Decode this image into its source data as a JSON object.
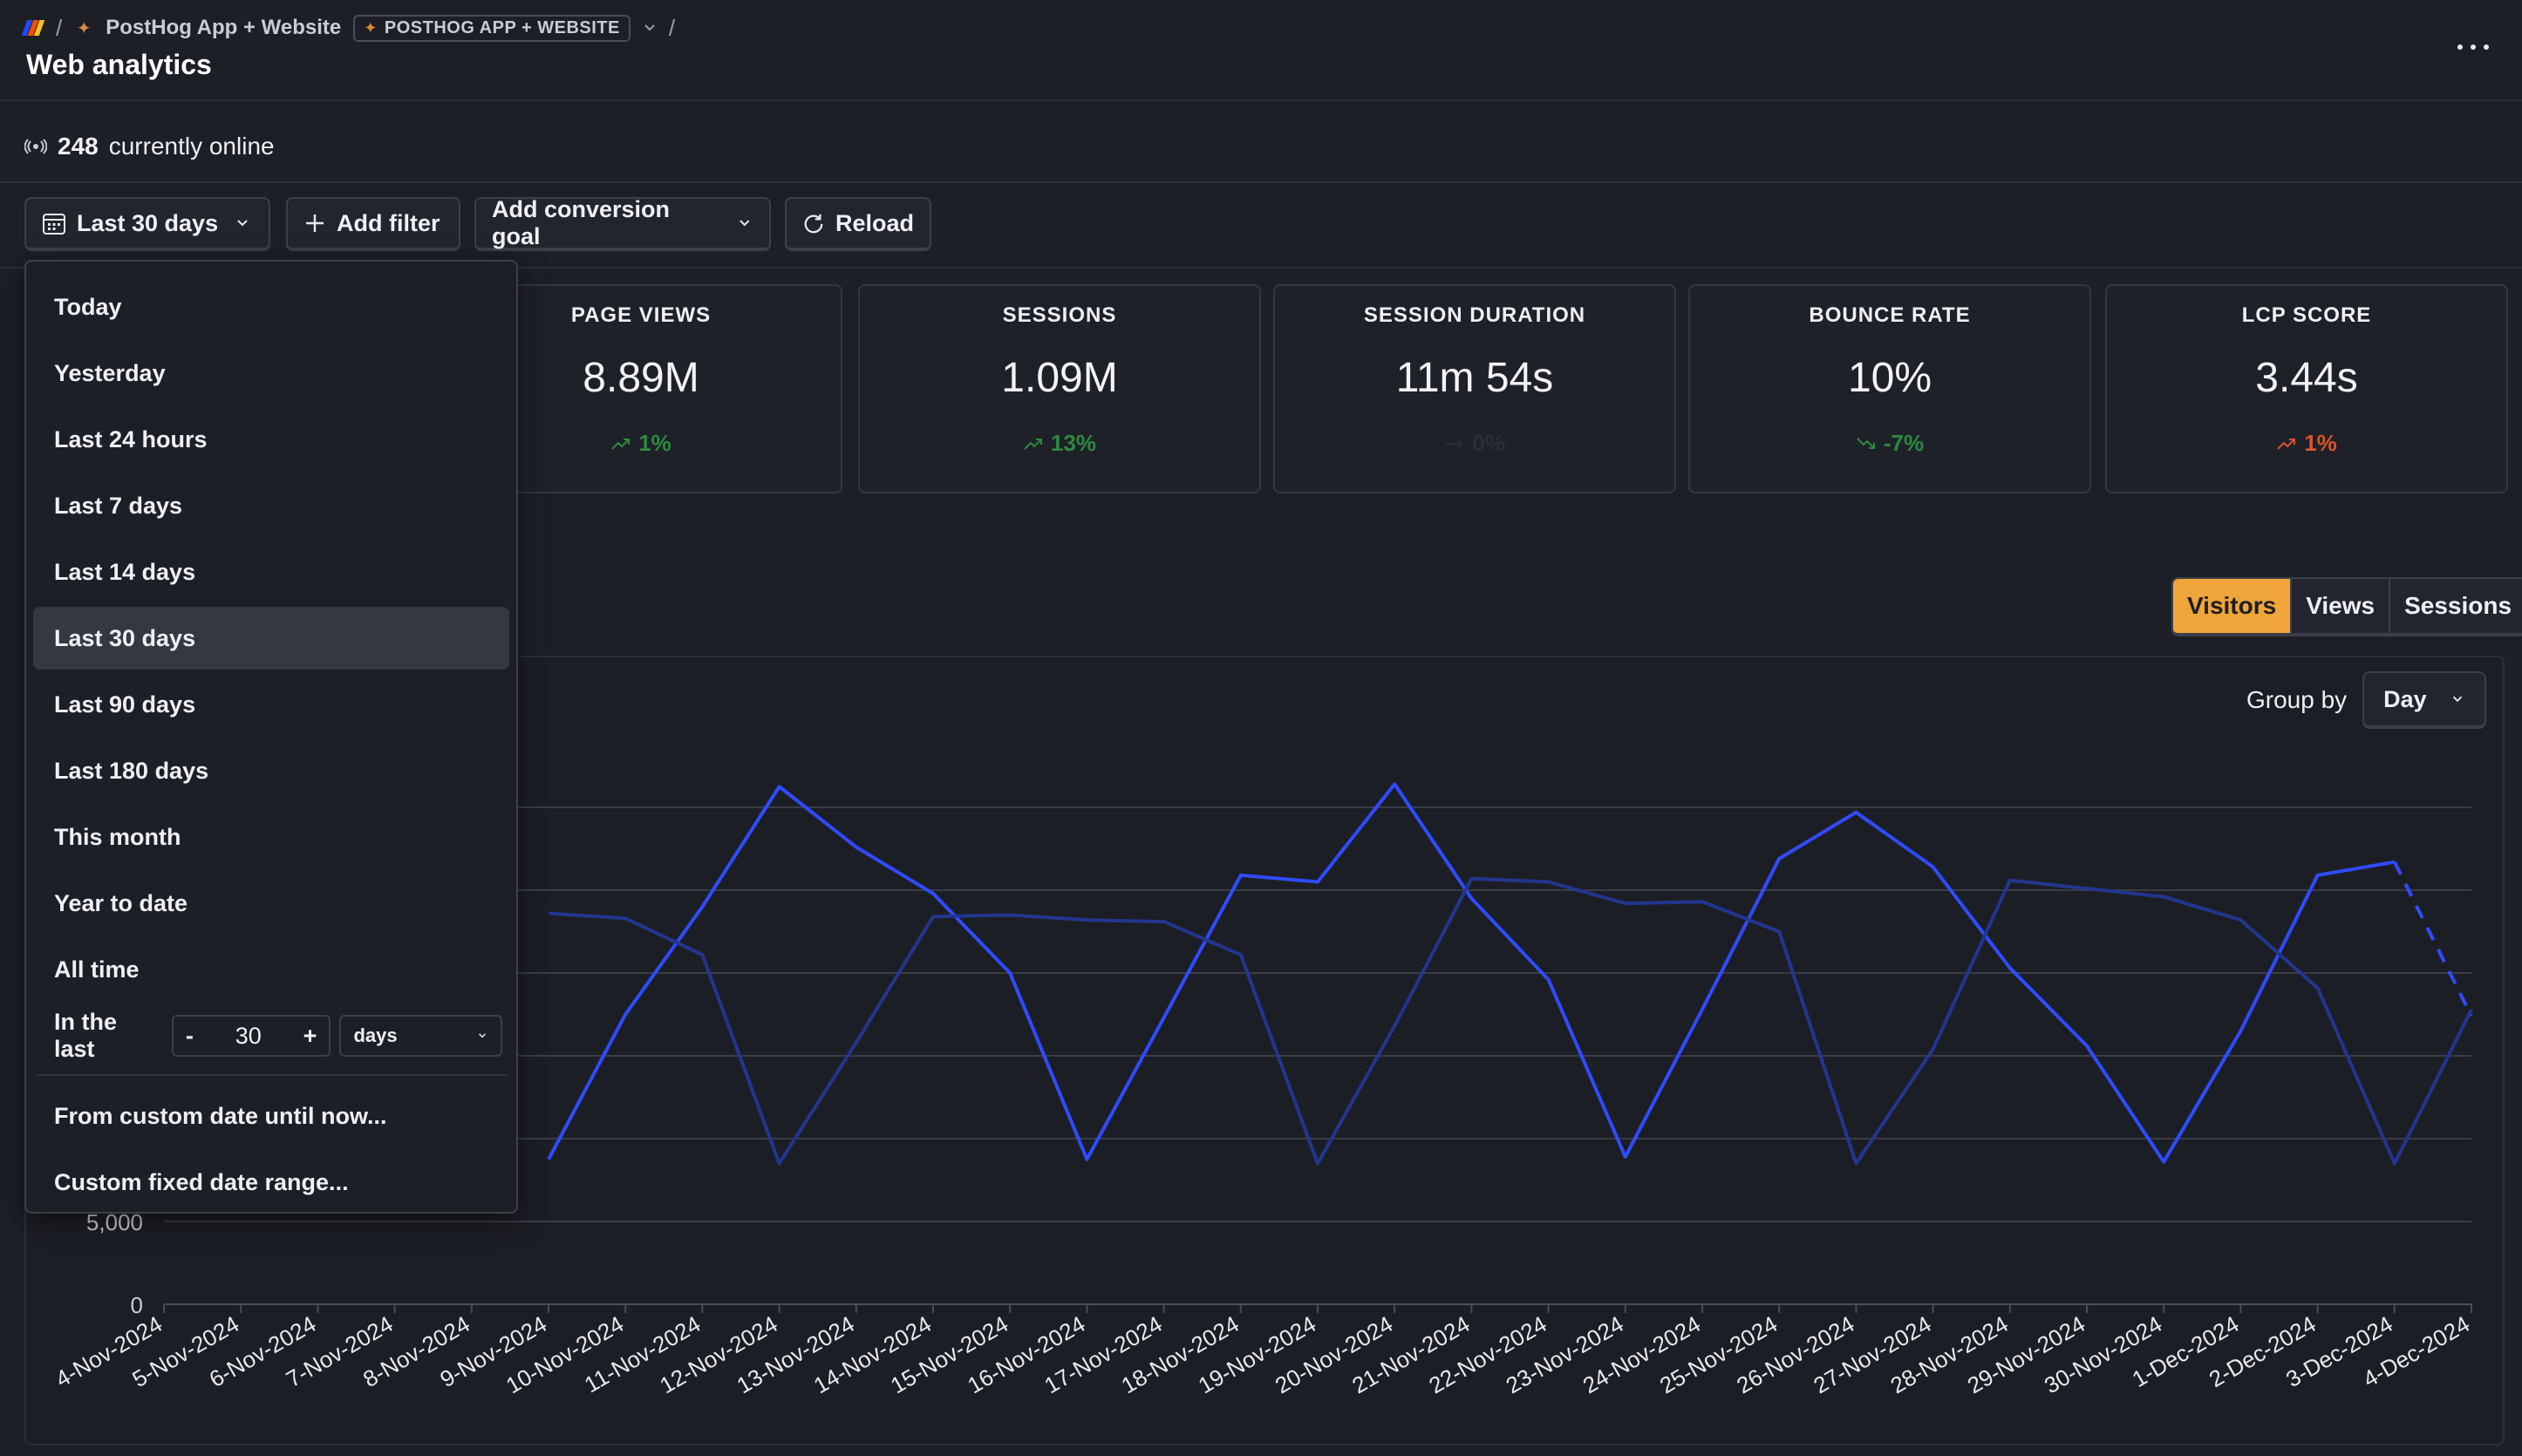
{
  "breadcrumb": {
    "project_name": "PostHog App + Website",
    "environment_badge": "POSTHOG APP + WEBSITE",
    "separator": "/"
  },
  "page": {
    "title": "Web analytics"
  },
  "online": {
    "count": "248",
    "label": "currently online"
  },
  "toolbar": {
    "date_range_label": "Last 30 days",
    "add_filter_label": "Add filter",
    "conversion_goal_label": "Add conversion goal",
    "reload_label": "Reload"
  },
  "stats": [
    {
      "label": "PAGE VIEWS",
      "value": "8.89M",
      "change": "1%",
      "trend": "up",
      "color": "#2c8a3d"
    },
    {
      "label": "SESSIONS",
      "value": "1.09M",
      "change": "13%",
      "trend": "up",
      "color": "#2c8a3d"
    },
    {
      "label": "SESSION DURATION",
      "value": "11m 54s",
      "change": "0%",
      "trend": "flat",
      "color": "#2b2e36"
    },
    {
      "label": "BOUNCE RATE",
      "value": "10%",
      "change": "-7%",
      "trend": "down",
      "color": "#2c8a3d"
    },
    {
      "label": "LCP SCORE",
      "value": "3.44s",
      "change": "1%",
      "trend": "up",
      "color": "#d9532c"
    }
  ],
  "chart_tabs": {
    "visitors": "Visitors",
    "views": "Views",
    "sessions": "Sessions",
    "active": "Visitors"
  },
  "group_by": {
    "label": "Group by",
    "value": "Day"
  },
  "date_menu": {
    "items": [
      "Today",
      "Yesterday",
      "Last 24 hours",
      "Last 7 days",
      "Last 14 days",
      "Last 30 days",
      "Last 90 days",
      "Last 180 days",
      "This month",
      "Year to date",
      "All time"
    ],
    "active": "Last 30 days",
    "in_the_last": {
      "label": "In the last",
      "minus": "-",
      "value": "30",
      "plus": "+",
      "unit": "days"
    },
    "custom_until_now": "From custom date until now...",
    "custom_fixed": "Custom fixed date range..."
  },
  "chart_data": {
    "type": "line",
    "x": [
      "4-Nov-2024",
      "5-Nov-2024",
      "6-Nov-2024",
      "7-Nov-2024",
      "8-Nov-2024",
      "9-Nov-2024",
      "10-Nov-2024",
      "11-Nov-2024",
      "12-Nov-2024",
      "13-Nov-2024",
      "14-Nov-2024",
      "15-Nov-2024",
      "16-Nov-2024",
      "17-Nov-2024",
      "18-Nov-2024",
      "19-Nov-2024",
      "20-Nov-2024",
      "21-Nov-2024",
      "22-Nov-2024",
      "23-Nov-2024",
      "24-Nov-2024",
      "25-Nov-2024",
      "26-Nov-2024",
      "27-Nov-2024",
      "28-Nov-2024",
      "29-Nov-2024",
      "30-Nov-2024",
      "1-Dec-2024",
      "2-Dec-2024",
      "3-Dec-2024",
      "4-Dec-2024"
    ],
    "series": [
      {
        "color": "#2f4bff",
        "values": [
          null,
          null,
          null,
          null,
          null,
          8750,
          17500,
          24000,
          31250,
          27600,
          24800,
          20000,
          8750,
          17300,
          25900,
          25500,
          31400,
          24500,
          19600,
          8900,
          17800,
          26900,
          29700,
          26400,
          20300,
          15600,
          8600,
          16500,
          25900,
          26700,
          17400
        ],
        "dashed_last_segment": true
      },
      {
        "color": "#22368f",
        "values": [
          null,
          null,
          null,
          null,
          null,
          23600,
          23300,
          21100,
          8500,
          15800,
          23400,
          23500,
          23200,
          23100,
          21100,
          8500,
          16800,
          25700,
          25500,
          24200,
          24300,
          22500,
          8500,
          15400,
          25600,
          25100,
          24600,
          23200,
          19100,
          8500,
          17800
        ]
      }
    ],
    "ylim": [
      0,
      32000
    ],
    "yticks": [
      "0",
      "5,000"
    ],
    "grid": true
  }
}
